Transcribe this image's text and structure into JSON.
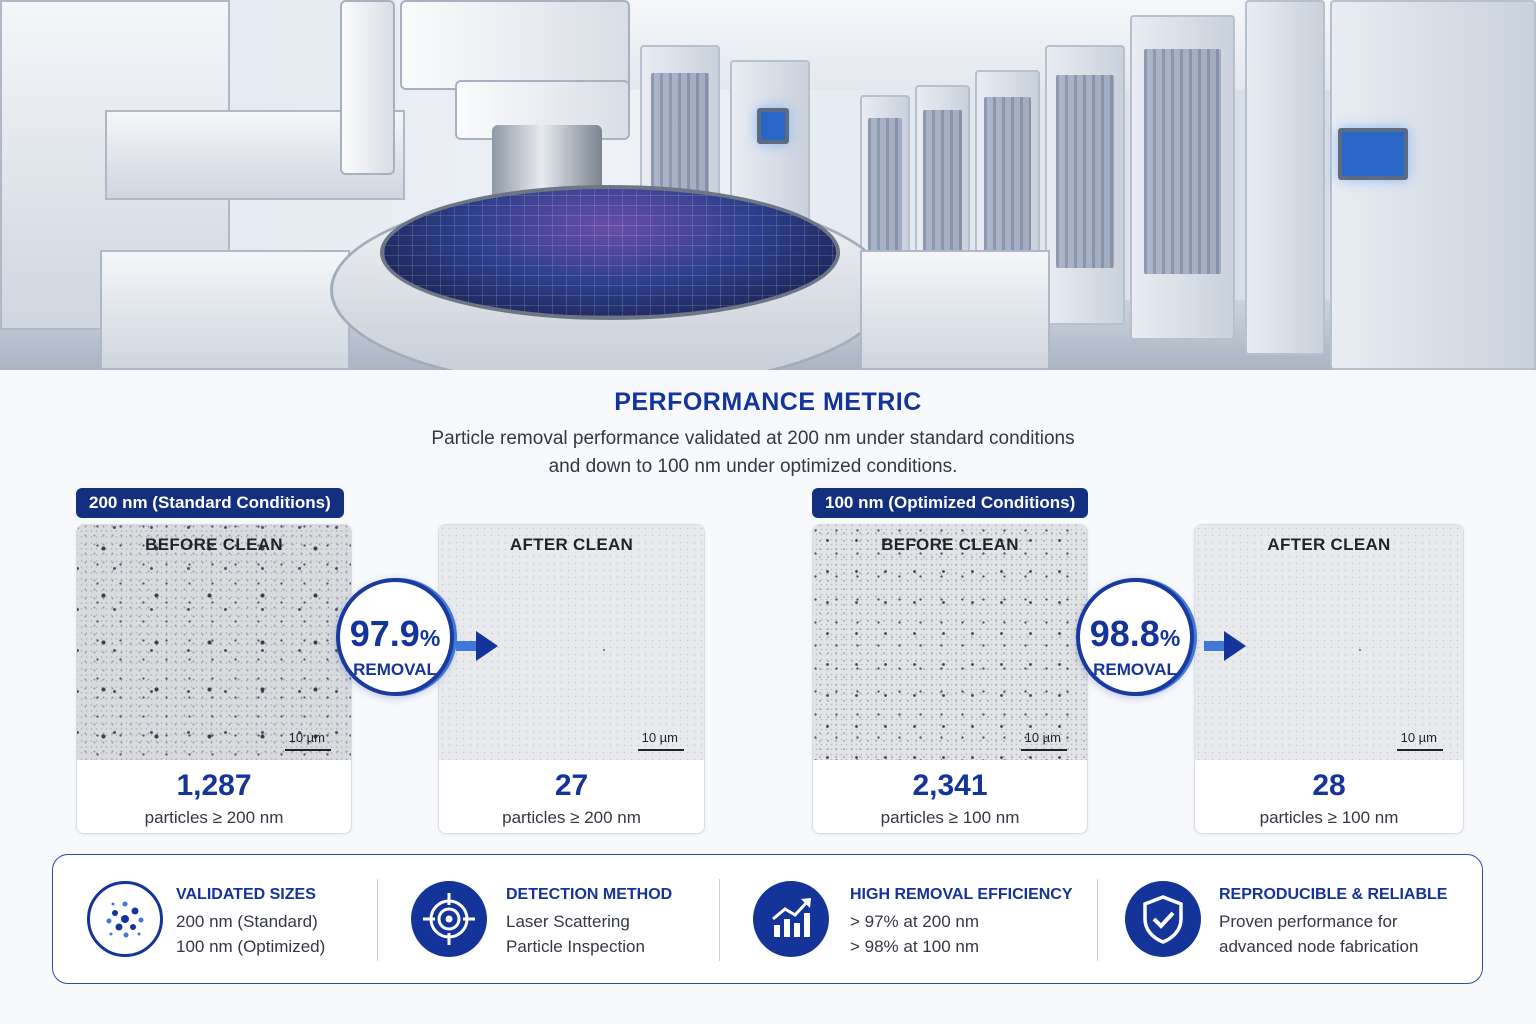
{
  "header": {
    "title": "PERFORMANCE METRIC",
    "subtitle_line1": "Particle removal performance validated at 200 nm under standard conditions",
    "subtitle_line2": "and down to 100 nm under optimized conditions."
  },
  "groups": [
    {
      "label": "200 nm (Standard Conditions)",
      "before": {
        "label": "BEFORE CLEAN",
        "scale": "10 µm",
        "count": "1,287",
        "unit": "particles ≥ 200 nm"
      },
      "after": {
        "label": "AFTER CLEAN",
        "scale": "10 µm",
        "count": "27",
        "unit": "particles ≥ 200 nm"
      },
      "removal": {
        "value": "97.9",
        "percent_sign": "%",
        "label": "REMOVAL"
      }
    },
    {
      "label": "100 nm (Optimized Conditions)",
      "before": {
        "label": "BEFORE CLEAN",
        "scale": "10 µm",
        "count": "2,341",
        "unit": "particles ≥ 100 nm"
      },
      "after": {
        "label": "AFTER CLEAN",
        "scale": "10 µm",
        "count": "28",
        "unit": "particles ≥ 100 nm"
      },
      "removal": {
        "value": "98.8",
        "percent_sign": "%",
        "label": "REMOVAL"
      }
    }
  ],
  "features": [
    {
      "icon": "particles-icon",
      "title": "VALIDATED SIZES",
      "line1": "200 nm (Standard)",
      "line2": "100 nm (Optimized)"
    },
    {
      "icon": "target-icon",
      "title": "DETECTION METHOD",
      "line1": "Laser Scattering",
      "line2": "Particle Inspection"
    },
    {
      "icon": "chart-up-icon",
      "title": "HIGH REMOVAL EFFICIENCY",
      "line1": "> 97% at 200 nm",
      "line2": "> 98% at 100 nm"
    },
    {
      "icon": "shield-check-icon",
      "title": "REPRODUCIBLE & RELIABLE",
      "line1": "Proven performance for",
      "line2": "advanced node fabrication"
    }
  ],
  "colors": {
    "primary": "#14349a",
    "label_bg": "#12307f",
    "accent": "#3f78d9"
  }
}
